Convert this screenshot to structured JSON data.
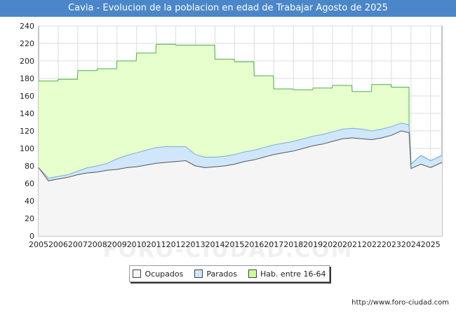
{
  "header": {
    "title": "Cavia - Evolucion de la poblacion en edad de Trabajar Agosto de 2025"
  },
  "footer": {
    "source": "http://www.foro-ciudad.com",
    "watermark": "FORO-CIUDAD.COM"
  },
  "colors": {
    "title_bg": "#4a86c8",
    "hab": "#e6ffcc",
    "hab_line": "#4caf50",
    "parados": "#cfe6fb",
    "parados_line": "#7aaed8",
    "ocupados": "#f5f5f5",
    "ocupados_line": "#555555",
    "grid": "#dddddd"
  },
  "chart_data": {
    "type": "area",
    "ylim": [
      0,
      240
    ],
    "yticks": [
      "0",
      "20",
      "40",
      "60",
      "80",
      "100",
      "120",
      "140",
      "160",
      "180",
      "200",
      "220",
      "240"
    ],
    "xticks": [
      "2005",
      "2006",
      "2007",
      "2008",
      "2009",
      "2010",
      "2011",
      "2012",
      "2013",
      "2014",
      "2015",
      "2016",
      "2017",
      "2018",
      "2019",
      "2020",
      "2021",
      "2022",
      "2023",
      "2024",
      "2025"
    ],
    "xlim": [
      2005.0,
      2025.58
    ],
    "legend_position": "bottom",
    "series": [
      {
        "name": "Ocupados",
        "x": [
          2005.0,
          2005.5,
          2006.0,
          2006.5,
          2007.0,
          2007.5,
          2008.0,
          2008.5,
          2009.0,
          2009.5,
          2010.0,
          2010.5,
          2011.0,
          2011.5,
          2012.0,
          2012.5,
          2013.0,
          2013.5,
          2014.0,
          2014.5,
          2015.0,
          2015.5,
          2016.0,
          2016.5,
          2017.0,
          2017.5,
          2018.0,
          2018.5,
          2019.0,
          2019.5,
          2020.0,
          2020.5,
          2021.0,
          2021.5,
          2022.0,
          2022.5,
          2023.0,
          2023.5,
          2023.9,
          2024.0,
          2024.5,
          2025.0,
          2025.58
        ],
        "values": [
          78,
          63,
          65,
          67,
          70,
          72,
          73,
          75,
          76,
          78,
          79,
          81,
          83,
          84,
          85,
          86,
          80,
          78,
          79,
          80,
          82,
          85,
          87,
          90,
          93,
          95,
          97,
          100,
          103,
          105,
          108,
          111,
          112,
          111,
          110,
          112,
          115,
          120,
          118,
          77,
          82,
          78,
          84
        ]
      },
      {
        "name": "Parados",
        "x": [
          2005.0,
          2005.5,
          2006.0,
          2006.5,
          2007.0,
          2007.5,
          2008.0,
          2008.5,
          2009.0,
          2009.5,
          2010.0,
          2010.5,
          2011.0,
          2011.5,
          2012.0,
          2012.5,
          2013.0,
          2013.5,
          2014.0,
          2014.5,
          2015.0,
          2015.5,
          2016.0,
          2016.5,
          2017.0,
          2017.5,
          2018.0,
          2018.5,
          2019.0,
          2019.5,
          2020.0,
          2020.5,
          2021.0,
          2021.5,
          2022.0,
          2022.5,
          2023.0,
          2023.5,
          2023.9,
          2024.0,
          2024.5,
          2025.0,
          2025.58
        ],
        "values": [
          0,
          3,
          3,
          3,
          4,
          6,
          7,
          8,
          12,
          14,
          16,
          17,
          18,
          18,
          17,
          16,
          13,
          12,
          11,
          11,
          11,
          11,
          11,
          11,
          11,
          11,
          11,
          11,
          11,
          11,
          11,
          11,
          11,
          11,
          10,
          10,
          10,
          9,
          9,
          5,
          10,
          8,
          8
        ]
      },
      {
        "name": "Hab. entre 16-64",
        "x": [
          2005.0,
          2006.0,
          2007.0,
          2008.0,
          2009.0,
          2010.0,
          2011.0,
          2012.0,
          2013.0,
          2014.0,
          2015.0,
          2016.0,
          2017.0,
          2018.0,
          2019.0,
          2020.0,
          2021.0,
          2022.0,
          2023.0,
          2024.0,
          2025.0
        ],
        "values": [
          177,
          179,
          189,
          191,
          200,
          209,
          219,
          218,
          218,
          202,
          199,
          183,
          168,
          167,
          169,
          172,
          165,
          173,
          170,
          0,
          0
        ]
      }
    ]
  }
}
